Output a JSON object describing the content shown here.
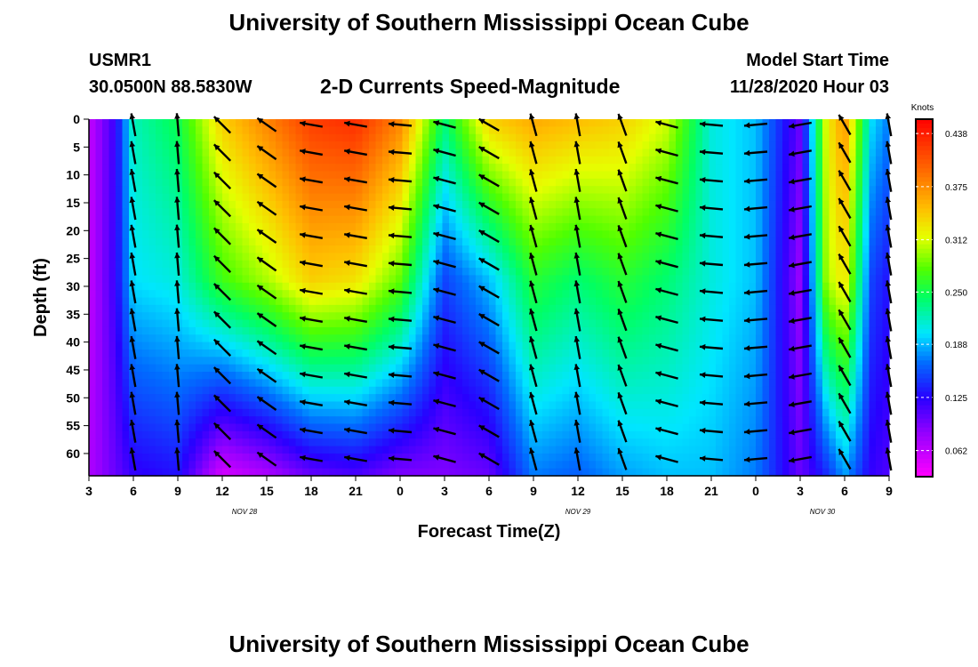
{
  "header": {
    "title": "University of Southern Mississippi Ocean Cube",
    "station": "USMR1",
    "coordinates": "30.0500N 88.5830W",
    "subtitle": "2-D Currents Speed-Magnitude",
    "model_start_label": "Model Start Time",
    "model_start_value": "11/28/2020 Hour 03"
  },
  "footer": {
    "title": "University of Southern Mississippi Ocean Cube"
  },
  "chart_data": {
    "type": "heatmap",
    "title": "2-D Currents Speed-Magnitude",
    "xlabel": "Forecast Time(Z)",
    "ylabel": "Depth (ft)",
    "x_tick_labels": [
      "3",
      "6",
      "9",
      "12",
      "15",
      "18",
      "21",
      "0",
      "3",
      "6",
      "9",
      "12",
      "15",
      "18",
      "21",
      "0",
      "3",
      "6",
      "9"
    ],
    "date_labels": [
      {
        "text": "NOV 28",
        "at_tick": 3.5
      },
      {
        "text": "NOV 29",
        "at_tick": 11
      },
      {
        "text": "NOV 30",
        "at_tick": 16.5
      }
    ],
    "y_tick_labels": [
      "0",
      "5",
      "10",
      "15",
      "20",
      "25",
      "30",
      "35",
      "40",
      "45",
      "50",
      "55",
      "60"
    ],
    "y_range_ft": [
      0,
      64
    ],
    "colorbar": {
      "unit": "Knots",
      "min": 0.031,
      "max": 0.455,
      "tick_labels": [
        "0.438",
        "0.375",
        "0.312",
        "0.250",
        "0.188",
        "0.125",
        "0.062"
      ],
      "tick_values": [
        0.438,
        0.375,
        0.312,
        0.25,
        0.188,
        0.125,
        0.062
      ]
    },
    "arrow_times_index": [
      1,
      2,
      3,
      4,
      5,
      6,
      7,
      8,
      9,
      10,
      11,
      12,
      13,
      14,
      15,
      16,
      17,
      18
    ],
    "arrow_directions_deg": [
      260,
      265,
      225,
      215,
      190,
      190,
      185,
      195,
      210,
      255,
      260,
      250,
      195,
      185,
      175,
      170,
      240,
      260
    ],
    "speed_profiles_knots": [
      {
        "t": 0,
        "top": 0.06,
        "mid": 0.06,
        "bottom": 0.07
      },
      {
        "t": 0.6,
        "top": 0.12,
        "mid": 0.12,
        "bottom": 0.1
      },
      {
        "t": 1,
        "top": 0.22,
        "mid": 0.2,
        "bottom": 0.12
      },
      {
        "t": 2,
        "top": 0.25,
        "mid": 0.21,
        "bottom": 0.13
      },
      {
        "t": 3,
        "top": 0.34,
        "mid": 0.27,
        "bottom": 0.05
      },
      {
        "t": 4,
        "top": 0.38,
        "mid": 0.3,
        "bottom": 0.07
      },
      {
        "t": 5,
        "top": 0.42,
        "mid": 0.34,
        "bottom": 0.1
      },
      {
        "t": 6,
        "top": 0.43,
        "mid": 0.33,
        "bottom": 0.11
      },
      {
        "t": 7,
        "top": 0.38,
        "mid": 0.28,
        "bottom": 0.09
      },
      {
        "t": 8,
        "top": 0.24,
        "mid": 0.15,
        "bottom": 0.09
      },
      {
        "t": 9,
        "top": 0.34,
        "mid": 0.19,
        "bottom": 0.1
      },
      {
        "t": 10,
        "top": 0.36,
        "mid": 0.26,
        "bottom": 0.17
      },
      {
        "t": 11,
        "top": 0.35,
        "mid": 0.24,
        "bottom": 0.16
      },
      {
        "t": 12,
        "top": 0.34,
        "mid": 0.26,
        "bottom": 0.18
      },
      {
        "t": 13,
        "top": 0.31,
        "mid": 0.24,
        "bottom": 0.19
      },
      {
        "t": 14,
        "top": 0.21,
        "mid": 0.21,
        "bottom": 0.19
      },
      {
        "t": 15,
        "top": 0.19,
        "mid": 0.19,
        "bottom": 0.17
      },
      {
        "t": 16,
        "top": 0.1,
        "mid": 0.08,
        "bottom": 0.1
      },
      {
        "t": 16.6,
        "top": 0.32,
        "mid": 0.3,
        "bottom": 0.14
      },
      {
        "t": 17,
        "top": 0.37,
        "mid": 0.33,
        "bottom": 0.18
      },
      {
        "t": 17.6,
        "top": 0.2,
        "mid": 0.15,
        "bottom": 0.12
      },
      {
        "t": 18,
        "top": 0.17,
        "mid": 0.13,
        "bottom": 0.11
      }
    ]
  }
}
